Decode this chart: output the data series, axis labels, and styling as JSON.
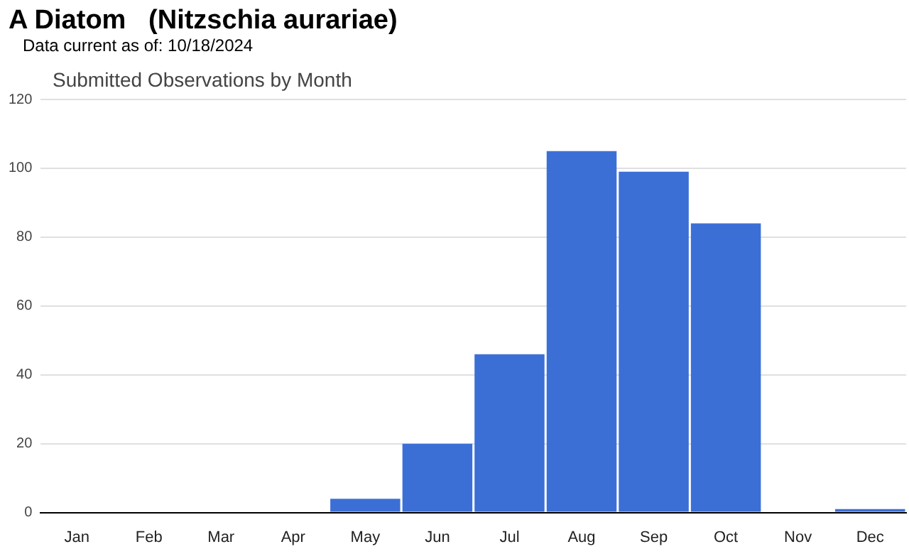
{
  "chart_data": {
    "type": "bar",
    "title": "A Diatom   (Nitzschia aurariae)",
    "subtitle": "Data current as of: 10/18/2024",
    "annotations": [
      "Submitted Observations by Month"
    ],
    "categories": [
      "Jan",
      "Feb",
      "Mar",
      "Apr",
      "May",
      "Jun",
      "Jul",
      "Aug",
      "Sep",
      "Oct",
      "Nov",
      "Dec"
    ],
    "values": [
      0,
      0,
      0,
      0,
      4,
      20,
      46,
      105,
      99,
      84,
      0,
      1
    ],
    "color": "#3c6fd6",
    "ylim": [
      0,
      120
    ],
    "yticks": [
      0,
      20,
      40,
      60,
      80,
      100,
      120
    ],
    "grid": "y",
    "legend": false
  }
}
